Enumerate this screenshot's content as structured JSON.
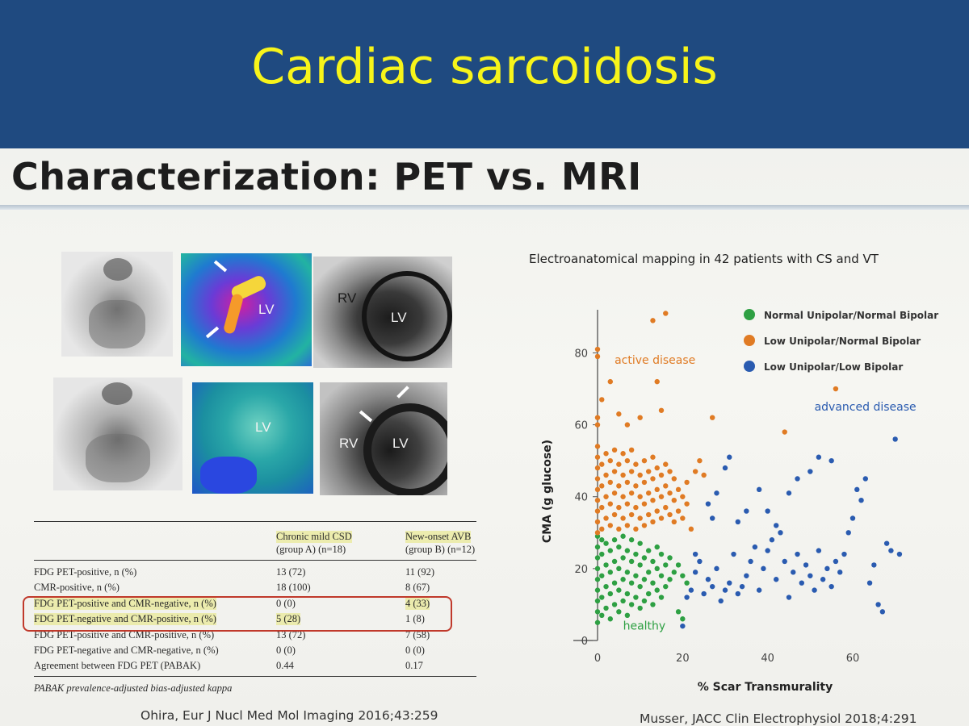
{
  "slide": {
    "title": "Cardiac sarcoidosis"
  },
  "heading": "Characterization: PET vs. MRI",
  "images": {
    "labels": [
      "LV",
      "RV",
      "LV",
      "LV",
      "RV",
      "LV"
    ]
  },
  "table": {
    "col_a_header": [
      "Chronic mild CSD",
      "(group A) (n=18)"
    ],
    "col_b_header": [
      "New-onset AVB",
      "(group B) (n=12)"
    ],
    "rows": [
      {
        "label": "FDG PET-positive, n (%)",
        "a": "13 (72)",
        "b": "11 (92)"
      },
      {
        "label": "CMR-positive, n (%)",
        "a": "18 (100)",
        "b": "8 (67)"
      },
      {
        "label": "FDG PET-positive and CMR-negative, n (%)",
        "a": "0 (0)",
        "b": "4 (33)"
      },
      {
        "label": "FDG PET-negative and CMR-positive, n (%)",
        "a": "5 (28)",
        "b": "1 (8)"
      },
      {
        "label": "FDG PET-positive and CMR-positive, n (%)",
        "a": "13 (72)",
        "b": "7 (58)"
      },
      {
        "label": "FDG PET-negative and CMR-negative, n (%)",
        "a": "0 (0)",
        "b": "0 (0)"
      },
      {
        "label": "Agreement between FDG PET (PABAK)",
        "a": "0.44",
        "b": "0.17"
      }
    ],
    "footnote": "PABAK prevalence-adjusted bias-adjusted kappa"
  },
  "citations": {
    "left": "Ohira, Eur J Nucl Med Mol Imaging 2016;43:259",
    "right": "Musser, JACC Clin Electrophysiol 2018;4:291"
  },
  "colors": {
    "banner": "#1f4a80",
    "title": "#f7f41a",
    "green": "#2ea043",
    "orange": "#e07b24",
    "blue": "#2a5bb0"
  },
  "chart_data": {
    "type": "scatter",
    "title": "Electroanatomical mapping in 42 patients with CS and VT",
    "xlabel": "% Scar Transmurality",
    "ylabel": "CMA (g glucose)",
    "xlim": [
      0,
      75
    ],
    "ylim": [
      0,
      92
    ],
    "xticks": [
      0,
      20,
      40,
      60
    ],
    "yticks": [
      0,
      20,
      40,
      60,
      80
    ],
    "legend_position": "top-right",
    "annotations": [
      {
        "text": "active disease",
        "x": 4,
        "y": 77,
        "color": "#e07b24"
      },
      {
        "text": "advanced disease",
        "x": 51,
        "y": 64,
        "color": "#2a5bb0"
      },
      {
        "text": "healthy",
        "x": 6,
        "y": 3,
        "color": "#2ea043"
      }
    ],
    "series": [
      {
        "name": "Normal Unipolar/Normal Bipolar",
        "color": "#2ea043",
        "points": [
          [
            0,
            5
          ],
          [
            0,
            8
          ],
          [
            0,
            11
          ],
          [
            0,
            14
          ],
          [
            0,
            17
          ],
          [
            0,
            20
          ],
          [
            0,
            23
          ],
          [
            0,
            26
          ],
          [
            0,
            29
          ],
          [
            1,
            7
          ],
          [
            1,
            12
          ],
          [
            1,
            18
          ],
          [
            1,
            24
          ],
          [
            1,
            28
          ],
          [
            2,
            9
          ],
          [
            2,
            15
          ],
          [
            2,
            21
          ],
          [
            2,
            27
          ],
          [
            3,
            6
          ],
          [
            3,
            13
          ],
          [
            3,
            19
          ],
          [
            3,
            25
          ],
          [
            4,
            10
          ],
          [
            4,
            16
          ],
          [
            4,
            22
          ],
          [
            4,
            28
          ],
          [
            5,
            8
          ],
          [
            5,
            14
          ],
          [
            5,
            20
          ],
          [
            5,
            26
          ],
          [
            6,
            11
          ],
          [
            6,
            17
          ],
          [
            6,
            23
          ],
          [
            6,
            29
          ],
          [
            7,
            7
          ],
          [
            7,
            13
          ],
          [
            7,
            19
          ],
          [
            7,
            25
          ],
          [
            8,
            10
          ],
          [
            8,
            16
          ],
          [
            8,
            22
          ],
          [
            8,
            28
          ],
          [
            9,
            12
          ],
          [
            9,
            18
          ],
          [
            9,
            24
          ],
          [
            10,
            9
          ],
          [
            10,
            15
          ],
          [
            10,
            21
          ],
          [
            10,
            27
          ],
          [
            11,
            11
          ],
          [
            11,
            17
          ],
          [
            11,
            23
          ],
          [
            12,
            13
          ],
          [
            12,
            19
          ],
          [
            12,
            25
          ],
          [
            13,
            10
          ],
          [
            13,
            16
          ],
          [
            13,
            22
          ],
          [
            14,
            14
          ],
          [
            14,
            20
          ],
          [
            14,
            26
          ],
          [
            15,
            12
          ],
          [
            15,
            18
          ],
          [
            15,
            24
          ],
          [
            16,
            15
          ],
          [
            16,
            21
          ],
          [
            17,
            17
          ],
          [
            17,
            23
          ],
          [
            18,
            19
          ],
          [
            19,
            21
          ],
          [
            20,
            18
          ],
          [
            21,
            16
          ],
          [
            19,
            8
          ],
          [
            20,
            6
          ]
        ]
      },
      {
        "name": "Low Unipolar/Normal Bipolar",
        "color": "#e07b24",
        "points": [
          [
            0,
            30
          ],
          [
            0,
            33
          ],
          [
            0,
            36
          ],
          [
            0,
            39
          ],
          [
            0,
            42
          ],
          [
            0,
            45
          ],
          [
            0,
            48
          ],
          [
            0,
            51
          ],
          [
            0,
            54
          ],
          [
            0,
            60
          ],
          [
            0,
            62
          ],
          [
            0,
            79
          ],
          [
            0,
            81
          ],
          [
            1,
            31
          ],
          [
            1,
            37
          ],
          [
            1,
            43
          ],
          [
            1,
            49
          ],
          [
            1,
            67
          ],
          [
            2,
            34
          ],
          [
            2,
            40
          ],
          [
            2,
            46
          ],
          [
            2,
            52
          ],
          [
            3,
            32
          ],
          [
            3,
            38
          ],
          [
            3,
            44
          ],
          [
            3,
            50
          ],
          [
            3,
            72
          ],
          [
            4,
            35
          ],
          [
            4,
            41
          ],
          [
            4,
            47
          ],
          [
            4,
            53
          ],
          [
            5,
            31
          ],
          [
            5,
            37
          ],
          [
            5,
            43
          ],
          [
            5,
            49
          ],
          [
            5,
            63
          ],
          [
            6,
            34
          ],
          [
            6,
            40
          ],
          [
            6,
            46
          ],
          [
            6,
            52
          ],
          [
            7,
            32
          ],
          [
            7,
            38
          ],
          [
            7,
            44
          ],
          [
            7,
            50
          ],
          [
            7,
            60
          ],
          [
            8,
            35
          ],
          [
            8,
            41
          ],
          [
            8,
            47
          ],
          [
            8,
            53
          ],
          [
            9,
            31
          ],
          [
            9,
            37
          ],
          [
            9,
            43
          ],
          [
            9,
            49
          ],
          [
            10,
            34
          ],
          [
            10,
            40
          ],
          [
            10,
            46
          ],
          [
            10,
            62
          ],
          [
            11,
            32
          ],
          [
            11,
            38
          ],
          [
            11,
            44
          ],
          [
            11,
            50
          ],
          [
            12,
            35
          ],
          [
            12,
            41
          ],
          [
            12,
            47
          ],
          [
            13,
            33
          ],
          [
            13,
            39
          ],
          [
            13,
            45
          ],
          [
            13,
            51
          ],
          [
            14,
            36
          ],
          [
            14,
            42
          ],
          [
            14,
            48
          ],
          [
            14,
            72
          ],
          [
            15,
            34
          ],
          [
            15,
            40
          ],
          [
            15,
            46
          ],
          [
            15,
            64
          ],
          [
            16,
            37
          ],
          [
            16,
            43
          ],
          [
            16,
            49
          ],
          [
            17,
            35
          ],
          [
            17,
            41
          ],
          [
            17,
            47
          ],
          [
            18,
            33
          ],
          [
            18,
            39
          ],
          [
            18,
            45
          ],
          [
            19,
            36
          ],
          [
            19,
            42
          ],
          [
            20,
            34
          ],
          [
            20,
            40
          ],
          [
            21,
            38
          ],
          [
            21,
            44
          ],
          [
            22,
            31
          ],
          [
            23,
            47
          ],
          [
            24,
            50
          ],
          [
            25,
            46
          ],
          [
            27,
            62
          ],
          [
            13,
            89
          ],
          [
            16,
            91
          ],
          [
            44,
            58
          ],
          [
            56,
            70
          ]
        ]
      },
      {
        "name": "Low Unipolar/Low Bipolar",
        "color": "#2a5bb0",
        "points": [
          [
            20,
            4
          ],
          [
            21,
            12
          ],
          [
            22,
            14
          ],
          [
            23,
            19
          ],
          [
            24,
            22
          ],
          [
            25,
            13
          ],
          [
            26,
            17
          ],
          [
            27,
            15
          ],
          [
            28,
            20
          ],
          [
            29,
            11
          ],
          [
            30,
            14
          ],
          [
            31,
            16
          ],
          [
            32,
            24
          ],
          [
            33,
            13
          ],
          [
            34,
            15
          ],
          [
            35,
            18
          ],
          [
            36,
            22
          ],
          [
            37,
            26
          ],
          [
            38,
            14
          ],
          [
            39,
            20
          ],
          [
            40,
            25
          ],
          [
            41,
            28
          ],
          [
            42,
            17
          ],
          [
            43,
            30
          ],
          [
            44,
            22
          ],
          [
            45,
            12
          ],
          [
            46,
            19
          ],
          [
            47,
            24
          ],
          [
            48,
            16
          ],
          [
            49,
            21
          ],
          [
            50,
            18
          ],
          [
            51,
            14
          ],
          [
            52,
            25
          ],
          [
            53,
            17
          ],
          [
            54,
            20
          ],
          [
            55,
            15
          ],
          [
            56,
            22
          ],
          [
            57,
            19
          ],
          [
            58,
            24
          ],
          [
            59,
            30
          ],
          [
            60,
            34
          ],
          [
            61,
            42
          ],
          [
            62,
            39
          ],
          [
            63,
            45
          ],
          [
            64,
            16
          ],
          [
            65,
            21
          ],
          [
            66,
            10
          ],
          [
            67,
            8
          ],
          [
            68,
            27
          ],
          [
            69,
            25
          ],
          [
            70,
            56
          ],
          [
            71,
            24
          ],
          [
            30,
            48
          ],
          [
            31,
            51
          ],
          [
            33,
            33
          ],
          [
            35,
            36
          ],
          [
            38,
            42
          ],
          [
            40,
            36
          ],
          [
            42,
            32
          ],
          [
            45,
            41
          ],
          [
            47,
            45
          ],
          [
            50,
            47
          ],
          [
            52,
            51
          ],
          [
            55,
            50
          ],
          [
            26,
            38
          ],
          [
            28,
            41
          ],
          [
            27,
            34
          ],
          [
            23,
            24
          ]
        ]
      }
    ]
  }
}
